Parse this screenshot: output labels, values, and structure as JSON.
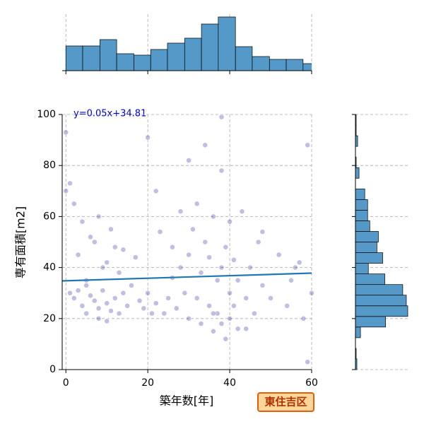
{
  "chart_data": {
    "type": "scatter",
    "xlabel": "築年数[年]",
    "ylabel": "専有面積[m2]",
    "annotation": "y=0.05x+34.81",
    "badge": "東住吉区",
    "regression": {
      "slope": 0.05,
      "intercept": 34.81,
      "color": "#1f77b4"
    },
    "color": "#00008b",
    "grid": true,
    "xlim": [
      -0.9,
      60
    ],
    "xticks": [
      0,
      20,
      40,
      60
    ],
    "ylim": [
      0,
      100
    ],
    "yticks": [
      0,
      20,
      40,
      60,
      80,
      100
    ],
    "x": [
      1,
      2,
      3,
      4,
      5,
      5,
      6,
      7,
      8,
      8,
      9,
      10,
      10,
      11,
      12,
      13,
      14,
      15,
      3,
      6,
      9,
      12,
      2,
      4,
      7,
      10,
      13,
      1,
      0,
      0,
      5,
      8,
      11,
      14,
      16,
      18,
      19,
      20,
      21,
      22,
      22,
      23,
      24,
      25,
      26,
      27,
      28,
      28,
      29,
      30,
      30,
      31,
      32,
      32,
      33,
      33,
      34,
      35,
      35,
      36,
      36,
      37,
      37,
      38,
      38,
      38,
      39,
      39,
      40,
      40,
      40,
      41,
      41,
      42,
      42,
      43,
      44,
      45,
      46,
      47,
      48,
      50,
      52,
      54,
      55,
      57,
      58,
      59,
      60,
      59,
      38,
      36,
      34,
      30,
      26,
      20,
      17,
      44,
      48,
      56
    ],
    "y": [
      30,
      28,
      31,
      25,
      22,
      33,
      29,
      27,
      20,
      24,
      31,
      26,
      19,
      23,
      28,
      22,
      30,
      25,
      45,
      52,
      40,
      48,
      65,
      58,
      50,
      42,
      38,
      73,
      93,
      70,
      35,
      60,
      55,
      47,
      33,
      27,
      24,
      30,
      22,
      70,
      26,
      54,
      22,
      28,
      36,
      24,
      62,
      40,
      30,
      45,
      20,
      55,
      65,
      28,
      38,
      18,
      50,
      25,
      44,
      60,
      15,
      35,
      22,
      18,
      40,
      99,
      12,
      48,
      20,
      30,
      58,
      25,
      43,
      16,
      35,
      62,
      28,
      40,
      22,
      50,
      33,
      28,
      45,
      25,
      35,
      42,
      20,
      88,
      30,
      3,
      78,
      22,
      88,
      82,
      48,
      91,
      44,
      16,
      54,
      40
    ],
    "x_hist": {
      "color": "#5599c8",
      "bins": [
        0,
        4.1,
        8.3,
        12.4,
        16.6,
        20.7,
        24.8,
        29,
        33.1,
        37.2,
        41.4,
        45.5,
        49.7,
        53.8,
        57.9,
        62
      ],
      "counts": [
        35,
        35,
        44,
        24,
        22,
        30,
        39,
        46,
        66,
        76,
        34,
        20,
        16,
        16,
        10
      ]
    },
    "y_hist": {
      "color": "#5599c8",
      "bins": [
        0,
        4.17,
        8.33,
        12.5,
        16.67,
        20.83,
        25,
        29.17,
        33.33,
        37.5,
        41.67,
        45.83,
        50,
        54.17,
        58.33,
        62.5,
        66.67,
        70.83,
        75,
        79.17,
        83.33,
        87.5,
        91.67,
        95.83,
        100
      ],
      "counts": [
        2,
        1,
        0,
        7,
        42,
        73,
        71,
        66,
        41,
        18,
        38,
        30,
        32,
        20,
        17,
        17,
        13,
        0,
        5,
        1,
        0,
        3,
        1,
        1
      ]
    }
  }
}
